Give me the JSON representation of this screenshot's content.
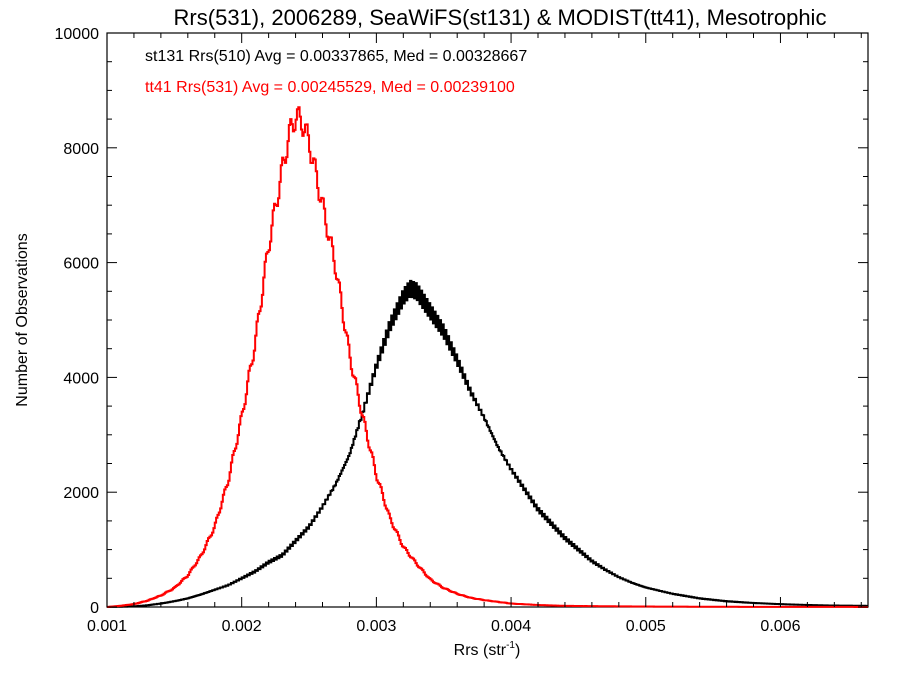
{
  "chart_data": {
    "type": "histogram-step",
    "title": "Rrs(531), 2006289, SeaWiFS(st131) & MODIST(tt41), Mesotrophic",
    "xlabel_main": "Rrs (str",
    "xlabel_sup": "-1",
    "xlabel_close": ")",
    "ylabel": "Number of Observations",
    "xlim": [
      0.001,
      0.00665
    ],
    "ylim": [
      0,
      10000
    ],
    "x_ticks": [
      0.001,
      0.002,
      0.003,
      0.004,
      0.005,
      0.006
    ],
    "x_tick_labels": [
      "0.001",
      "0.002",
      "0.003",
      "0.004",
      "0.005",
      "0.006"
    ],
    "y_ticks": [
      0,
      2000,
      4000,
      6000,
      8000,
      10000
    ],
    "y_tick_labels": [
      "0",
      "2000",
      "4000",
      "6000",
      "8000",
      "10000"
    ],
    "grid": false,
    "series": [
      {
        "label": "st131 Rrs(510) Avg = 0.00337865, Med = 0.00328667",
        "color": "#000000",
        "points": [
          [
            0.001,
            0
          ],
          [
            0.0011,
            5
          ],
          [
            0.0012,
            10
          ],
          [
            0.0013,
            30
          ],
          [
            0.0014,
            60
          ],
          [
            0.0015,
            100
          ],
          [
            0.0016,
            150
          ],
          [
            0.0017,
            220
          ],
          [
            0.0018,
            300
          ],
          [
            0.0019,
            380
          ],
          [
            0.002,
            500
          ],
          [
            0.0021,
            620
          ],
          [
            0.0022,
            780
          ],
          [
            0.0023,
            900
          ],
          [
            0.0024,
            1150
          ],
          [
            0.0025,
            1400
          ],
          [
            0.0026,
            1750
          ],
          [
            0.0027,
            2150
          ],
          [
            0.0028,
            2650
          ],
          [
            0.0029,
            3400
          ],
          [
            0.003,
            4200
          ],
          [
            0.0031,
            4900
          ],
          [
            0.0032,
            5400
          ],
          [
            0.00325,
            5550
          ],
          [
            0.0033,
            5500
          ],
          [
            0.0034,
            5150
          ],
          [
            0.0035,
            4800
          ],
          [
            0.0036,
            4300
          ],
          [
            0.0037,
            3750
          ],
          [
            0.0038,
            3300
          ],
          [
            0.0039,
            2800
          ],
          [
            0.004,
            2400
          ],
          [
            0.0041,
            2050
          ],
          [
            0.0042,
            1700
          ],
          [
            0.0043,
            1450
          ],
          [
            0.0044,
            1200
          ],
          [
            0.0045,
            1000
          ],
          [
            0.0046,
            800
          ],
          [
            0.0047,
            650
          ],
          [
            0.0048,
            520
          ],
          [
            0.0049,
            420
          ],
          [
            0.005,
            340
          ],
          [
            0.0052,
            230
          ],
          [
            0.0054,
            150
          ],
          [
            0.0056,
            100
          ],
          [
            0.0058,
            70
          ],
          [
            0.006,
            50
          ],
          [
            0.0062,
            35
          ],
          [
            0.0064,
            25
          ],
          [
            0.00665,
            20
          ]
        ]
      },
      {
        "label": "tt41 Rrs(531) Avg = 0.00245529, Med = 0.00239100",
        "color": "#ff0000",
        "points": [
          [
            0.001,
            0
          ],
          [
            0.0011,
            20
          ],
          [
            0.0012,
            50
          ],
          [
            0.0013,
            110
          ],
          [
            0.0014,
            200
          ],
          [
            0.0015,
            330
          ],
          [
            0.0016,
            550
          ],
          [
            0.0017,
            900
          ],
          [
            0.0018,
            1400
          ],
          [
            0.0019,
            2200
          ],
          [
            0.002,
            3300
          ],
          [
            0.0021,
            4600
          ],
          [
            0.0022,
            6300
          ],
          [
            0.0023,
            7600
          ],
          [
            0.00235,
            8200
          ],
          [
            0.0024,
            8550
          ],
          [
            0.00245,
            8450
          ],
          [
            0.0025,
            8100
          ],
          [
            0.0026,
            7000
          ],
          [
            0.0027,
            5900
          ],
          [
            0.0028,
            4400
          ],
          [
            0.0029,
            3300
          ],
          [
            0.003,
            2300
          ],
          [
            0.0031,
            1550
          ],
          [
            0.0032,
            1050
          ],
          [
            0.0033,
            750
          ],
          [
            0.0034,
            480
          ],
          [
            0.0035,
            330
          ],
          [
            0.0036,
            230
          ],
          [
            0.0037,
            160
          ],
          [
            0.0038,
            120
          ],
          [
            0.0039,
            90
          ],
          [
            0.004,
            60
          ],
          [
            0.0042,
            35
          ],
          [
            0.0044,
            20
          ],
          [
            0.0046,
            15
          ],
          [
            0.005,
            8
          ],
          [
            0.0055,
            4
          ],
          [
            0.006,
            2
          ],
          [
            0.00665,
            1
          ]
        ]
      }
    ]
  }
}
